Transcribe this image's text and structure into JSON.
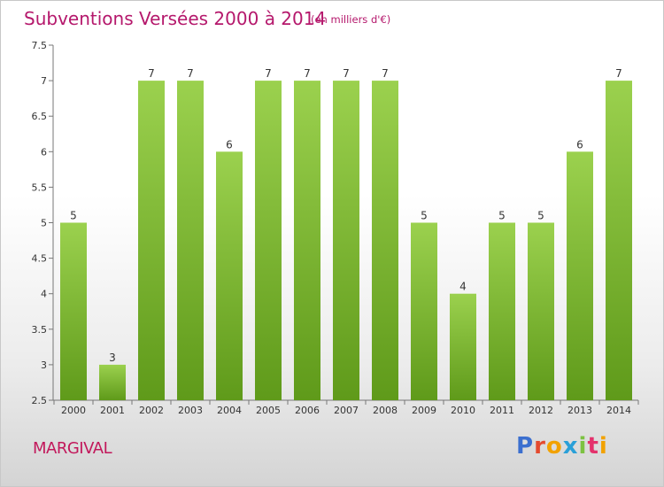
{
  "header": {
    "title": "Subventions Versées 2000 à 2014",
    "subtitle": "(en milliers d'€)"
  },
  "footer": {
    "place_name": "MARGIVAL",
    "logo_text": "Proxiti"
  },
  "colors": {
    "title": "#b5186c",
    "bar_light": "#9bd14e",
    "bar_dark": "#5f9a1a",
    "logo_letters": [
      "#3b6fcf",
      "#e44a2f",
      "#f2a200",
      "#2aa0d8",
      "#7cc242",
      "#e4326c",
      "#f2a200"
    ]
  },
  "chart_data": {
    "type": "bar",
    "categories": [
      "2000",
      "2001",
      "2002",
      "2003",
      "2004",
      "2005",
      "2006",
      "2007",
      "2008",
      "2009",
      "2010",
      "2011",
      "2012",
      "2013",
      "2014"
    ],
    "values": [
      5,
      3,
      7,
      7,
      6,
      7,
      7,
      7,
      7,
      5,
      4,
      5,
      5,
      6,
      7
    ],
    "data_labels": [
      "5",
      "3",
      "7",
      "7",
      "6",
      "7",
      "7",
      "7",
      "7",
      "5",
      "4",
      "5",
      "5",
      "6",
      "7"
    ],
    "y_ticks": [
      "2.5",
      "3",
      "3.5",
      "4",
      "4.5",
      "5",
      "5.5",
      "6",
      "6.5",
      "7",
      "7.5"
    ],
    "ylim": [
      2.5,
      7.5
    ],
    "grid": false,
    "legend": "none"
  }
}
